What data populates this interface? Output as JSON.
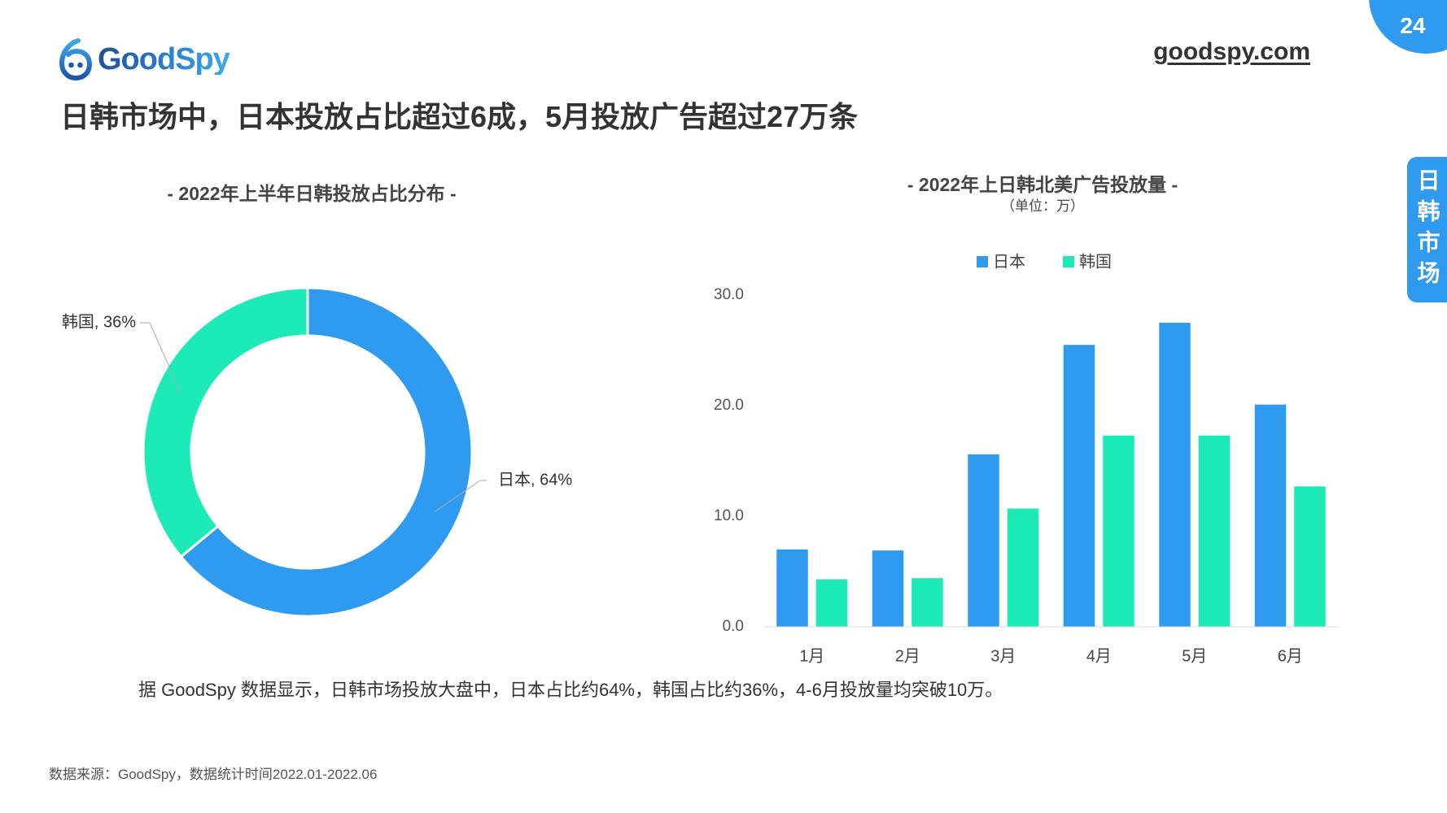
{
  "brand": {
    "logo_text": "GoodSpy",
    "website": "goodspy.com"
  },
  "page_number": "24",
  "section_tab": "日韩市场",
  "title": "日韩市场中，日本投放占比超过6成，5月投放广告超过27万条",
  "summary": "据 GoodSpy 数据显示，日韩市场投放大盘中，日本占比约64%，韩国占比约36%，4-6月投放量均突破10万。",
  "source": "数据来源：GoodSpy，数据统计时间2022.01-2022.06",
  "colors": {
    "accent": "#2E9BF0",
    "japan": "#2E9BF0",
    "korea": "#1CEBB8",
    "text": "#333333"
  },
  "chart_data": [
    {
      "type": "pie",
      "donut": true,
      "title": "- 2022年上半年日韩投放占比分布 -",
      "slices": [
        {
          "name": "日本",
          "value": 64,
          "label": "日本, 64%",
          "color": "#2E9BF0"
        },
        {
          "name": "韩国",
          "value": 36,
          "label": "韩国, 36%",
          "color": "#1CEBB8"
        }
      ]
    },
    {
      "type": "bar",
      "title": "- 2022年上日韩北美广告投放量 -",
      "subtitle": "（单位：万）",
      "categories": [
        "1月",
        "2月",
        "3月",
        "4月",
        "5月",
        "6月"
      ],
      "series": [
        {
          "name": "日本",
          "color": "#2E9BF0",
          "values": [
            7.0,
            6.9,
            15.6,
            25.5,
            27.5,
            20.1
          ]
        },
        {
          "name": "韩国",
          "color": "#1CEBB8",
          "values": [
            4.3,
            4.4,
            10.7,
            17.3,
            17.3,
            12.7
          ]
        }
      ],
      "yticks": [
        "0.0",
        "10.0",
        "20.0",
        "30.0"
      ],
      "ylim": [
        0,
        30
      ],
      "legend": "top-center",
      "grid": false
    }
  ]
}
